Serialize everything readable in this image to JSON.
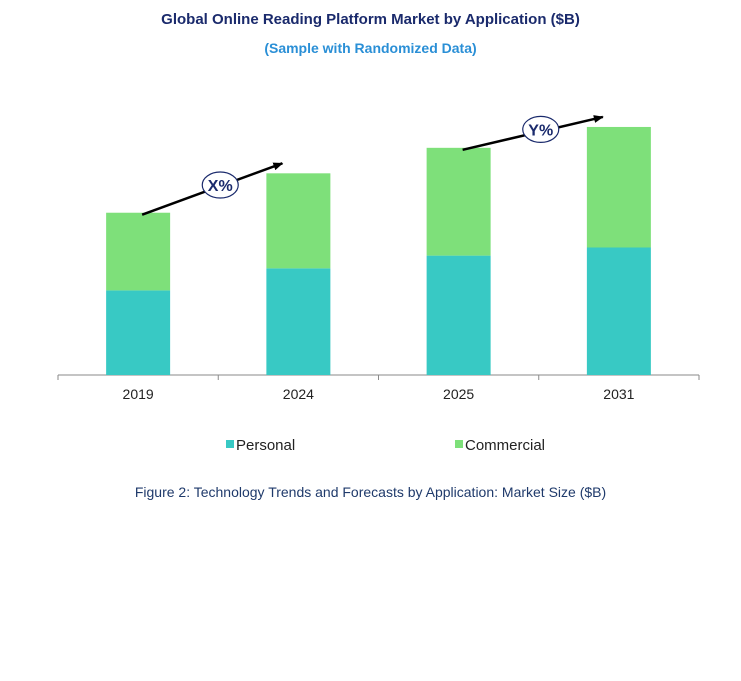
{
  "chart_data": {
    "type": "bar",
    "stacked": true,
    "title": "Global Online Reading Platform Market by Application ($B)",
    "subtitle": "(Sample with Randomized Data)",
    "categories": [
      "2019",
      "2024",
      "2025",
      "2031"
    ],
    "series": [
      {
        "name": "Personal",
        "color": "#38c9c4",
        "values": [
          73,
          92,
          103,
          110
        ]
      },
      {
        "name": "Commercial",
        "color": "#7ee07a",
        "values": [
          67,
          82,
          93,
          104
        ]
      }
    ],
    "ylim": [
      0,
      220
    ],
    "grid": false,
    "legend_position": "bottom",
    "annotations": [
      {
        "text": "X%",
        "from_category": "2019",
        "to_category": "2024"
      },
      {
        "text": "Y%",
        "from_category": "2025",
        "to_category": "2031"
      }
    ],
    "caption": "Figure 2: Technology  Trends  and Forecasts by Application: Market Size ($B)"
  }
}
